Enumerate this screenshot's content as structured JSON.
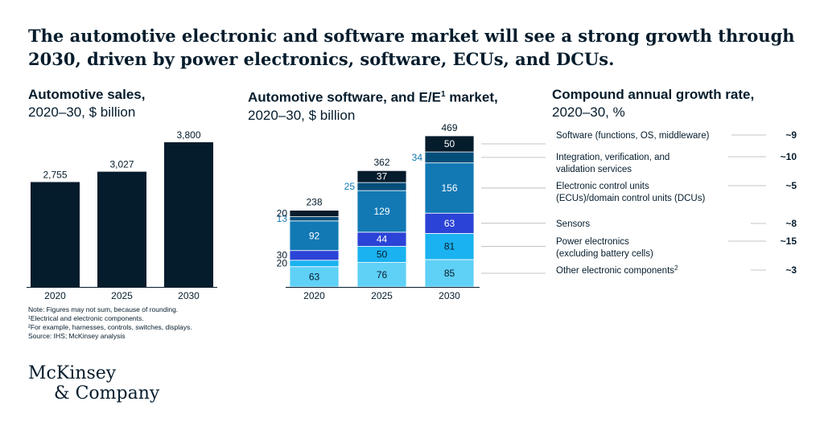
{
  "title": "The automotive electronic and software market will see a strong growth through 2030, driven by power electronics, software, ECUs, and DCUs.",
  "panels": {
    "sales": {
      "title": "Automotive sales,",
      "subtitle": "2020–30, $ billion"
    },
    "software": {
      "title_pre": "Automotive software, and E/E",
      "title_sup": "1",
      "title_post": " market,",
      "subtitle": "2020–30, $ billion"
    },
    "cagr": {
      "title": "Compound annual growth rate,",
      "subtitle": "2020–30, %"
    }
  },
  "colors": {
    "navy": "#051c2c",
    "dark_blue": "#044e7a",
    "mid_blue": "#1279b5",
    "royal_blue": "#2b43d6",
    "cyan": "#1ab2f0",
    "light_cyan": "#5fd0f6",
    "text": "#051c2c",
    "leader": "#b3b3b3"
  },
  "chart_data": [
    {
      "type": "bar",
      "categories": [
        "2020",
        "2025",
        "2030"
      ],
      "values": [
        2755,
        3027,
        3800
      ],
      "value_labels": [
        "2,755",
        "3,027",
        "3,800"
      ],
      "ylim": [
        0,
        3800
      ]
    },
    {
      "type": "bar",
      "stacked": true,
      "categories": [
        "2020",
        "2025",
        "2030"
      ],
      "totals": [
        238,
        362,
        469
      ],
      "series": [
        {
          "name": "Other electronic components",
          "color": "light_cyan",
          "values": [
            63,
            76,
            85
          ]
        },
        {
          "name": "Power electronics",
          "color": "cyan",
          "values": [
            20,
            50,
            81
          ]
        },
        {
          "name": "Sensors",
          "color": "royal_blue",
          "values": [
            30,
            44,
            63
          ]
        },
        {
          "name": "Electronic control units (ECUs)/domain control units (DCUs)",
          "color": "mid_blue",
          "values": [
            92,
            129,
            156
          ]
        },
        {
          "name": "Integration, verification, and validation services",
          "color": "dark_blue",
          "values": [
            13,
            25,
            34
          ]
        },
        {
          "name": "Software (functions, OS, middleware)",
          "color": "navy",
          "values": [
            20,
            37,
            50
          ]
        }
      ],
      "ylim": [
        0,
        469
      ]
    },
    {
      "type": "table",
      "rows": [
        {
          "label_lines": [
            "Software (functions, OS, middleware)"
          ],
          "sup": "",
          "value": "~9"
        },
        {
          "label_lines": [
            "Integration, verification, and",
            "validation services"
          ],
          "sup": "",
          "value": "~10"
        },
        {
          "label_lines": [
            "Electronic control units",
            "(ECUs)/domain control units (DCUs)"
          ],
          "sup": "",
          "value": "~5"
        },
        {
          "label_lines": [
            "Sensors"
          ],
          "sup": "",
          "value": "~8"
        },
        {
          "label_lines": [
            "Power electronics",
            "(excluding battery cells)"
          ],
          "sup": "",
          "value": "~15"
        },
        {
          "label_lines": [
            "Other electronic components"
          ],
          "sup": "2",
          "value": "~3"
        }
      ]
    }
  ],
  "notes": [
    "Note: Figures may not sum, because of rounding.",
    "¹Electrical and electronic components.",
    "²For example, harnesses, controls, switches, displays.",
    "Source: IHS; McKinsey analysis"
  ],
  "logo": {
    "line1": "McKinsey",
    "line2": "& Company"
  }
}
